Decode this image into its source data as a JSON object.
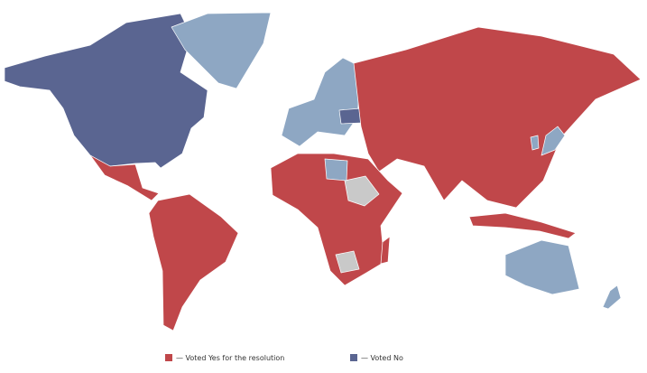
{
  "legend": [
    {
      "label": "— Voted Yes for the resolution",
      "color": "#c0474a"
    },
    {
      "label": "— Voted No",
      "color": "#5a6591"
    }
  ]
}
